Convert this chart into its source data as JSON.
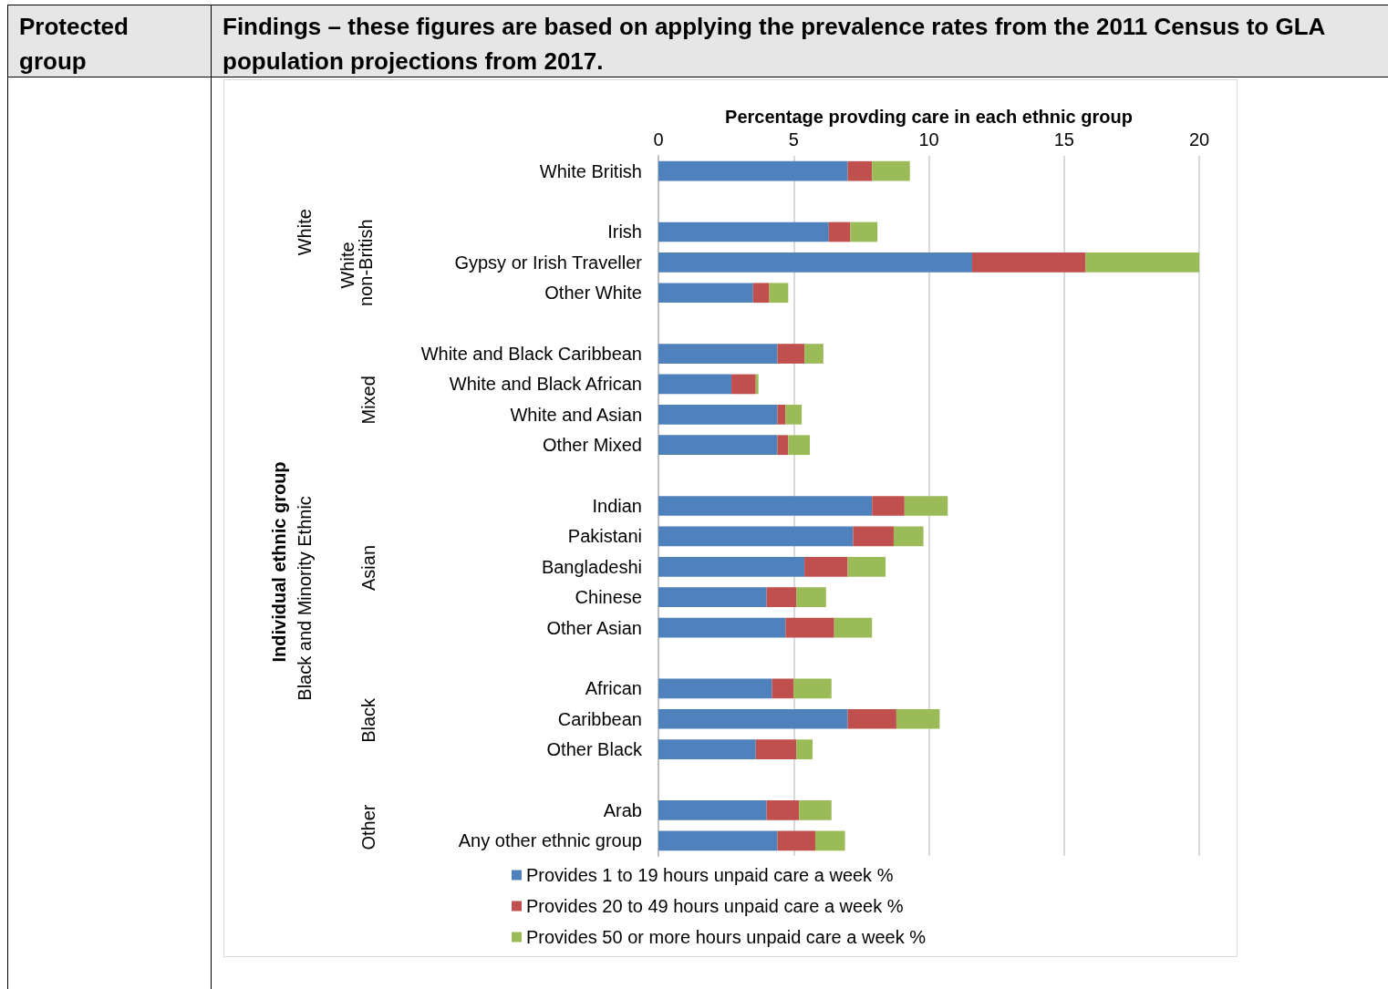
{
  "chart_data": {
    "type": "bar",
    "orientation": "horizontal",
    "stacked": true,
    "xlabel": "Percentage provding care in each ethnic group",
    "categories": [
      "White British",
      null,
      "Irish",
      "Gypsy or Irish Traveller",
      "Other White",
      null,
      "White and Black Caribbean",
      "White and Black African",
      "White and Asian",
      "Other Mixed",
      null,
      "Indian",
      "Pakistani",
      "Bangladeshi",
      "Chinese",
      "Other Asian",
      null,
      "African",
      "Caribbean",
      "Other Black",
      null,
      "Arab",
      "Any other ethnic group"
    ],
    "series": [
      {
        "name": "Provides 1 to 19 hours unpaid care a week %",
        "color": "#4f81bd",
        "values": [
          7.0,
          null,
          6.3,
          11.6,
          3.5,
          null,
          4.4,
          2.7,
          4.4,
          4.4,
          null,
          7.9,
          7.2,
          5.4,
          4.0,
          4.7,
          null,
          4.2,
          7.0,
          3.6,
          null,
          4.0,
          4.4
        ]
      },
      {
        "name": "Provides 20 to 49 hours unpaid care a week %",
        "color": "#c0504d",
        "values": [
          0.9,
          null,
          0.8,
          4.2,
          0.6,
          null,
          1.0,
          0.9,
          0.3,
          0.4,
          null,
          1.2,
          1.5,
          1.6,
          1.1,
          1.8,
          null,
          0.8,
          1.8,
          1.5,
          null,
          1.2,
          1.4
        ]
      },
      {
        "name": "Provides 50 or more hours unpaid care a week %",
        "color": "#9bbb59",
        "values": [
          1.4,
          null,
          1.0,
          4.2,
          0.7,
          null,
          0.7,
          0.1,
          0.6,
          0.8,
          null,
          1.6,
          1.1,
          1.4,
          1.1,
          1.4,
          null,
          1.4,
          1.6,
          0.6,
          null,
          1.2,
          1.1
        ]
      }
    ],
    "xlim": [
      0,
      20
    ],
    "xticks": [
      0,
      5,
      10,
      15,
      20
    ],
    "grid": "x",
    "legend": "bottom",
    "annotations": [
      "Protected group",
      "Findings – these figures are based on applying the prevalence rates from the 2011 Census to GLA population projections from 2017.",
      "White",
      "White non-British",
      "Mixed",
      "Asian",
      "Black",
      "Other",
      "Black and Minority Ethnic",
      "Individual ethnic group"
    ]
  }
}
